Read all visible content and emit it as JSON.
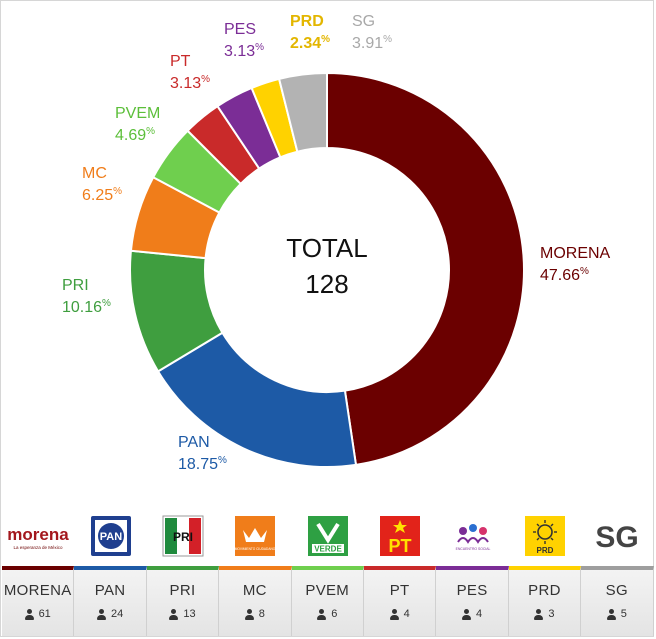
{
  "chart_data": {
    "type": "pie",
    "center_label": "TOTAL",
    "total": "128",
    "slices": [
      {
        "name": "MORENA",
        "value": 47.66,
        "label": "47.66",
        "color": "#6b0000",
        "label_color": "#6b0000"
      },
      {
        "name": "PAN",
        "value": 18.75,
        "label": "18.75",
        "color": "#1d5aa6",
        "label_color": "#1d5aa6"
      },
      {
        "name": "PRI",
        "value": 10.16,
        "label": "10.16",
        "color": "#3f9e3f",
        "label_color": "#3f9e3f"
      },
      {
        "name": "MC",
        "value": 6.25,
        "label": "6.25",
        "color": "#f07d1a",
        "label_color": "#f07d1a"
      },
      {
        "name": "PVEM",
        "value": 4.69,
        "label": "4.69",
        "color": "#6fcf4e",
        "label_color": "#5cbf3a"
      },
      {
        "name": "PT",
        "value": 3.13,
        "label": "3.13",
        "color": "#c92a2a",
        "label_color": "#c92a2a"
      },
      {
        "name": "PES",
        "value": 3.13,
        "label": "3.13",
        "color": "#7b2d96",
        "label_color": "#7b2d96"
      },
      {
        "name": "PRD",
        "value": 2.34,
        "label": "2.34",
        "color": "#ffd200",
        "label_color": "#e3b600"
      },
      {
        "name": "SG",
        "value": 3.91,
        "label": "3.91",
        "color": "#b3b3b3",
        "label_color": "#a8a8a8"
      }
    ],
    "percent_sign": "%"
  },
  "logos": [
    {
      "party": "MORENA",
      "icon": "morena-logo",
      "text": "morena",
      "subtext": "La esperanza de México"
    },
    {
      "party": "PAN",
      "icon": "pan-logo",
      "text": "PAN"
    },
    {
      "party": "PRI",
      "icon": "pri-logo",
      "text": "PRI"
    },
    {
      "party": "MC",
      "icon": "mc-logo",
      "text": "MOVIMIENTO CIUDADANO"
    },
    {
      "party": "PVEM",
      "icon": "pvem-logo",
      "text": "VERDE"
    },
    {
      "party": "PT",
      "icon": "pt-logo",
      "text": "PT"
    },
    {
      "party": "PES",
      "icon": "pes-logo",
      "text": "ENCUENTRO SOCIAL"
    },
    {
      "party": "PRD",
      "icon": "prd-logo",
      "text": "PRD"
    },
    {
      "party": "SG",
      "icon": "sg-logo",
      "text": "SG"
    }
  ],
  "seats": [
    {
      "party": "MORENA",
      "count": "61",
      "color": "#6b0000"
    },
    {
      "party": "PAN",
      "count": "24",
      "color": "#1d5aa6"
    },
    {
      "party": "PRI",
      "count": "13",
      "color": "#3f9e3f"
    },
    {
      "party": "MC",
      "count": "8",
      "color": "#f07d1a"
    },
    {
      "party": "PVEM",
      "count": "6",
      "color": "#6fcf4e"
    },
    {
      "party": "PT",
      "count": "4",
      "color": "#c92a2a"
    },
    {
      "party": "PES",
      "count": "4",
      "color": "#7b2d96"
    },
    {
      "party": "PRD",
      "count": "3",
      "color": "#ffd200"
    },
    {
      "party": "SG",
      "count": "5",
      "color": "#9e9e9e"
    }
  ]
}
